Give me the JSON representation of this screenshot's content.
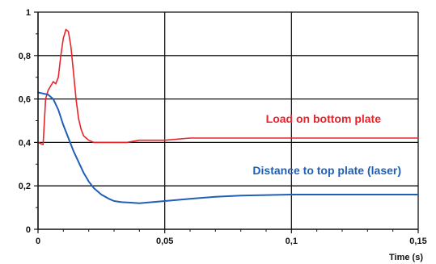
{
  "chart_data": {
    "type": "line",
    "title": "",
    "xlabel": "Time (s)",
    "ylabel": "",
    "xlim": [
      0,
      0.15
    ],
    "ylim": [
      0,
      1
    ],
    "x_ticks": [
      0,
      0.05,
      0.1,
      0.15
    ],
    "x_tick_labels": [
      "0",
      "0,05",
      "0,1",
      "0,15"
    ],
    "y_ticks": [
      0,
      0.2,
      0.4,
      0.6,
      0.8,
      1
    ],
    "y_tick_labels": [
      "0",
      "0,2",
      "0,4",
      "0,6",
      "0,8",
      "1"
    ],
    "grid": true,
    "series": [
      {
        "name": "Load on bottom plate",
        "color": "#e8232a",
        "x": [
          0,
          0.002,
          0.003,
          0.004,
          0.005,
          0.006,
          0.007,
          0.008,
          0.009,
          0.01,
          0.011,
          0.012,
          0.013,
          0.014,
          0.015,
          0.016,
          0.017,
          0.018,
          0.019,
          0.02,
          0.022,
          0.025,
          0.03,
          0.035,
          0.04,
          0.05,
          0.06,
          0.08,
          0.1,
          0.12,
          0.15
        ],
        "y": [
          0.4,
          0.39,
          0.6,
          0.64,
          0.66,
          0.68,
          0.67,
          0.7,
          0.8,
          0.88,
          0.92,
          0.91,
          0.84,
          0.72,
          0.6,
          0.51,
          0.46,
          0.43,
          0.42,
          0.41,
          0.4,
          0.4,
          0.4,
          0.4,
          0.41,
          0.41,
          0.42,
          0.42,
          0.42,
          0.42,
          0.42
        ]
      },
      {
        "name": "Distance to top plate (laser)",
        "color": "#1f5fb5",
        "x": [
          0,
          0.004,
          0.006,
          0.008,
          0.01,
          0.012,
          0.014,
          0.016,
          0.018,
          0.02,
          0.022,
          0.025,
          0.028,
          0.03,
          0.033,
          0.036,
          0.04,
          0.045,
          0.05,
          0.06,
          0.07,
          0.08,
          0.1,
          0.12,
          0.15
        ],
        "y": [
          0.63,
          0.62,
          0.6,
          0.55,
          0.48,
          0.42,
          0.36,
          0.31,
          0.26,
          0.22,
          0.19,
          0.16,
          0.14,
          0.13,
          0.125,
          0.123,
          0.12,
          0.125,
          0.13,
          0.14,
          0.15,
          0.155,
          0.16,
          0.16,
          0.16
        ]
      }
    ]
  }
}
